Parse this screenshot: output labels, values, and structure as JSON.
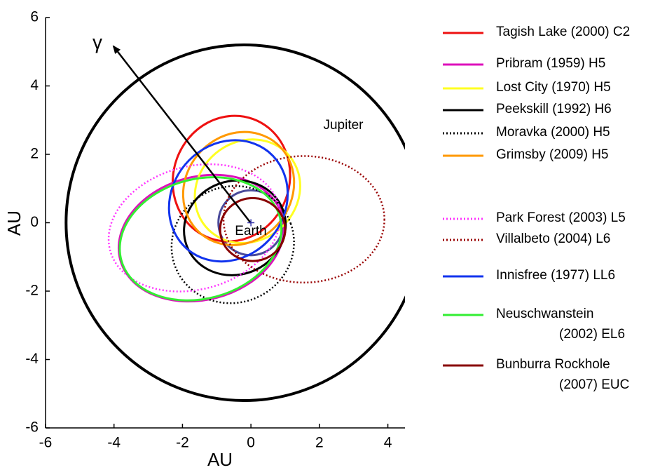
{
  "chart_data": {
    "type": "orbit",
    "xlabel": "AU",
    "ylabel": "AU",
    "xlim": [
      -6,
      4.5
    ],
    "ylim": [
      -6,
      6
    ],
    "xticks": [
      -6,
      -4,
      -2,
      0,
      2,
      4
    ],
    "yticks": [
      -6,
      -4,
      -2,
      0,
      2,
      4,
      6
    ],
    "direction_label": "γ",
    "reference_orbits": [
      {
        "label": "Jupiter",
        "color": "#000000",
        "center": [
          -0.2,
          0
        ],
        "radii": [
          5.2,
          5.2
        ],
        "angle": 0
      },
      {
        "label": "Earth",
        "color": "#4a4a9a",
        "center": [
          0,
          0
        ],
        "radii": [
          0.95,
          0.95
        ],
        "angle": 0
      }
    ],
    "series": [
      {
        "name": "Tagish Lake (2000) C2",
        "color": "#ee1111",
        "dash": "solid",
        "center": [
          -0.57,
          1.29
        ],
        "radii": [
          1.85,
          1.7
        ],
        "angle": 70
      },
      {
        "name": "Pribram (1959) H5",
        "color": "#dd11bb",
        "dash": "solid",
        "center": [
          -1.45,
          -0.45
        ],
        "radii": [
          2.45,
          1.8
        ],
        "angle": 15
      },
      {
        "name": "Lost City (1970) H5",
        "color": "#ffff22",
        "dash": "solid",
        "center": [
          -0.1,
          0.92
        ],
        "radii": [
          1.6,
          1.45
        ],
        "angle": 40
      },
      {
        "name": "Peekskill (1992) H6",
        "color": "#000000",
        "dash": "solid",
        "center": [
          -0.47,
          -0.15
        ],
        "radii": [
          1.5,
          1.37
        ],
        "angle": 20
      },
      {
        "name": "Moravka (2000) H5",
        "color": "#000000",
        "dash": "dotted",
        "center": [
          -0.53,
          -0.64
        ],
        "radii": [
          1.8,
          1.7
        ],
        "angle": 20
      },
      {
        "name": "Grimsby (2009) H5",
        "color": "#ff9900",
        "dash": "solid",
        "center": [
          -0.36,
          1.0
        ],
        "radii": [
          1.72,
          1.55
        ],
        "angle": 50
      },
      {
        "name": "Park Forest (2003) L5",
        "color": "#ff33ff",
        "dash": "dotted",
        "center": [
          -1.65,
          -0.15
        ],
        "radii": [
          2.55,
          1.8
        ],
        "angle": 15
      },
      {
        "name": "Villalbeto (2004) L6",
        "color": "#990000",
        "dash": "dotted",
        "center": [
          1.55,
          0.1
        ],
        "radii": [
          2.35,
          1.85
        ],
        "angle": 0
      },
      {
        "name": "Innisfree (1977) LL6",
        "color": "#1133ee",
        "dash": "solid",
        "center": [
          -0.66,
          0.64
        ],
        "radii": [
          1.85,
          1.65
        ],
        "angle": 50
      },
      {
        "name": "Neuschwanstein\n(2002) EL6",
        "color": "#33ee33",
        "dash": "solid",
        "center": [
          -1.47,
          -0.47
        ],
        "radii": [
          2.4,
          1.75
        ],
        "angle": 15
      },
      {
        "name": "Bunburra Rockhole\n(2007) EUC",
        "color": "#880000",
        "dash": "solid",
        "center": [
          0.05,
          -0.2
        ],
        "radii": [
          0.95,
          0.92
        ],
        "angle": 0
      }
    ]
  }
}
